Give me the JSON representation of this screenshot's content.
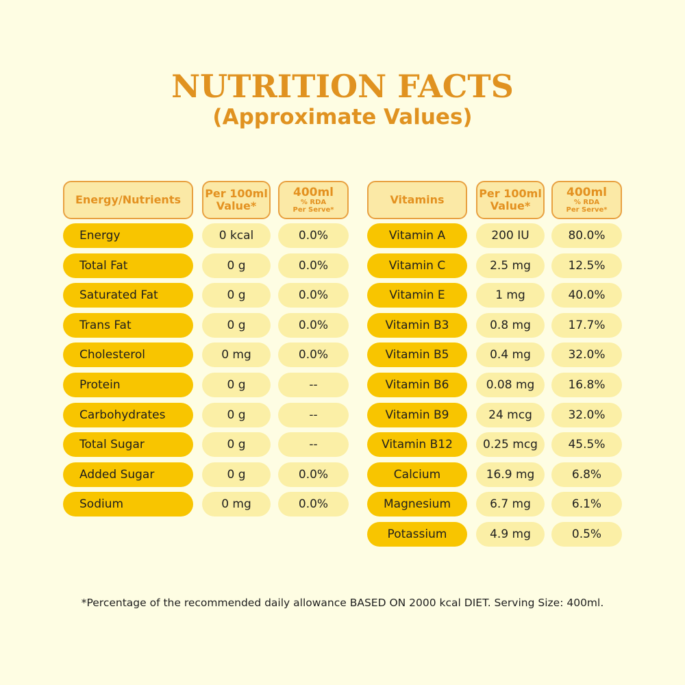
{
  "title": "NUTRITION FACTS",
  "subtitle": "(Approximate Values)",
  "colors": {
    "background": "#fefde3",
    "title": "#e09220",
    "name_pill": "#f8c500",
    "value_pill": "#fbefa6",
    "header_border": "#e8a040"
  },
  "left_table": {
    "headers": {
      "name": "Energy/Nutrients",
      "per100_line1": "Per 100ml",
      "per100_line2": "Value*",
      "rda_line1": "400ml",
      "rda_line2": "% RDA",
      "rda_line3": "Per Serve*"
    },
    "rows": [
      {
        "name": "Energy",
        "per100": "0 kcal",
        "rda": "0.0%"
      },
      {
        "name": "Total Fat",
        "per100": "0 g",
        "rda": "0.0%"
      },
      {
        "name": "Saturated Fat",
        "per100": "0 g",
        "rda": "0.0%"
      },
      {
        "name": "Trans Fat",
        "per100": "0 g",
        "rda": "0.0%"
      },
      {
        "name": "Cholesterol",
        "per100": "0 mg",
        "rda": "0.0%"
      },
      {
        "name": "Protein",
        "per100": "0 g",
        "rda": "--"
      },
      {
        "name": "Carbohydrates",
        "per100": "0 g",
        "rda": "--"
      },
      {
        "name": "Total Sugar",
        "per100": "0 g",
        "rda": "--"
      },
      {
        "name": "Added Sugar",
        "per100": "0 g",
        "rda": "0.0%"
      },
      {
        "name": "Sodium",
        "per100": "0 mg",
        "rda": "0.0%"
      }
    ]
  },
  "right_table": {
    "headers": {
      "name": "Vitamins",
      "per100_line1": "Per 100ml",
      "per100_line2": "Value*",
      "rda_line1": "400ml",
      "rda_line2": "% RDA",
      "rda_line3": "Per Serve*"
    },
    "rows": [
      {
        "name": "Vitamin A",
        "per100": "200 IU",
        "rda": "80.0%"
      },
      {
        "name": "Vitamin C",
        "per100": "2.5 mg",
        "rda": "12.5%"
      },
      {
        "name": "Vitamin E",
        "per100": "1 mg",
        "rda": "40.0%"
      },
      {
        "name": "Vitamin B3",
        "per100": "0.8 mg",
        "rda": "17.7%"
      },
      {
        "name": "Vitamin B5",
        "per100": "0.4 mg",
        "rda": "32.0%"
      },
      {
        "name": "Vitamin B6",
        "per100": "0.08 mg",
        "rda": "16.8%"
      },
      {
        "name": "Vitamin B9",
        "per100": "24 mcg",
        "rda": "32.0%"
      },
      {
        "name": "Vitamin B12",
        "per100": "0.25 mcg",
        "rda": "45.5%"
      },
      {
        "name": "Calcium",
        "per100": "16.9 mg",
        "rda": "6.8%"
      },
      {
        "name": "Magnesium",
        "per100": "6.7 mg",
        "rda": "6.1%"
      },
      {
        "name": "Potassium",
        "per100": "4.9 mg",
        "rda": "0.5%"
      }
    ]
  },
  "footnote": "*Percentage of the recommended daily allowance BASED ON 2000 kcal DIET. Serving Size: 400ml."
}
